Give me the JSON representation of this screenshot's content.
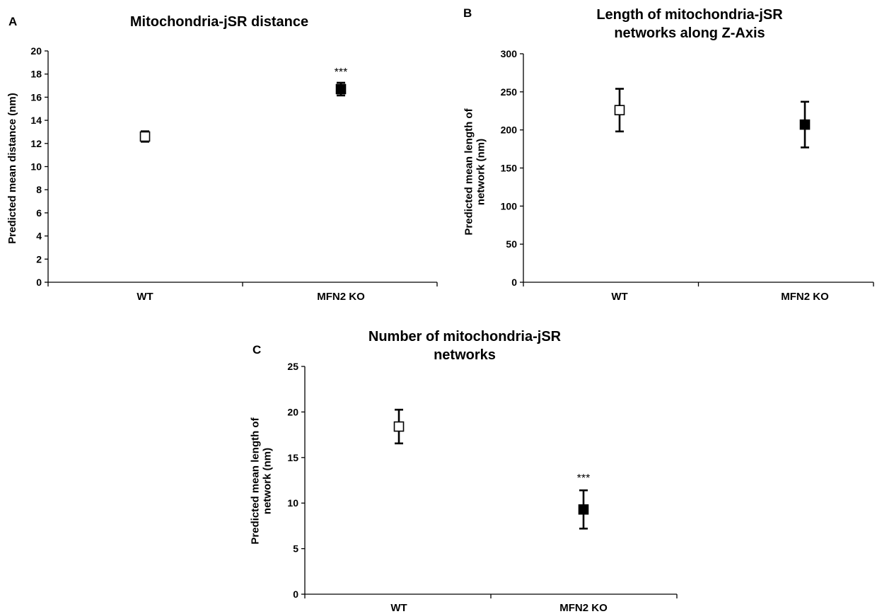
{
  "chart_data": [
    {
      "panel": "A",
      "type": "scatter",
      "title": [
        "Mitochondria-jSR distance"
      ],
      "xlabel": "",
      "ylabel": [
        "Predicted mean distance (nm)"
      ],
      "categories": [
        "WT",
        "MFN2 KO"
      ],
      "values": [
        12.6,
        16.7
      ],
      "errors": [
        0.45,
        0.55
      ],
      "marker_fill": [
        "#ffffff",
        "#000000"
      ],
      "significance": [
        "",
        "***"
      ],
      "ylim": [
        0,
        20
      ],
      "yticks": [
        0,
        2,
        4,
        6,
        8,
        10,
        12,
        14,
        16,
        18,
        20
      ],
      "grid": false,
      "legend": false
    },
    {
      "panel": "B",
      "type": "scatter",
      "title": [
        "Length of mitochondria-jSR",
        "networks along Z-Axis"
      ],
      "xlabel": "",
      "ylabel": [
        "Predicted mean length of",
        "network (nm)"
      ],
      "categories": [
        "WT",
        "MFN2 KO"
      ],
      "values": [
        226,
        207
      ],
      "errors": [
        28,
        30
      ],
      "marker_fill": [
        "#ffffff",
        "#000000"
      ],
      "significance": [
        "",
        ""
      ],
      "ylim": [
        0,
        300
      ],
      "yticks": [
        0,
        50,
        100,
        150,
        200,
        250,
        300
      ],
      "grid": false,
      "legend": false
    },
    {
      "panel": "C",
      "type": "scatter",
      "title": [
        "Number of mitochondria-jSR",
        "networks"
      ],
      "xlabel": "",
      "ylabel": [
        "Predicted mean length of",
        "network (nm)"
      ],
      "categories": [
        "WT",
        "MFN2 KO"
      ],
      "values": [
        18.4,
        9.3
      ],
      "errors": [
        1.85,
        2.1
      ],
      "marker_fill": [
        "#ffffff",
        "#000000"
      ],
      "significance": [
        "",
        "***"
      ],
      "ylim": [
        0,
        25
      ],
      "yticks": [
        0,
        5,
        10,
        15,
        20,
        25
      ],
      "grid": false,
      "legend": false
    }
  ]
}
